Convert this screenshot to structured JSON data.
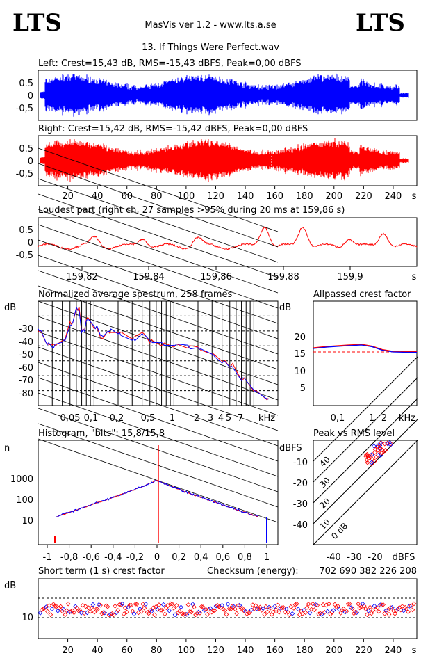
{
  "header": {
    "logo_left": "LTS",
    "logo_right": "LTS",
    "app_title": "MasVis ver 1.2 - www.lts.a.se",
    "file_title": "13. If Things Were Perfect.wav"
  },
  "colors": {
    "left": "#0000ff",
    "right": "#ff0000"
  },
  "chart_data": [
    {
      "type": "line",
      "title": "Left: Crest=15,43 dB, RMS=-15,43 dBFS, Peak=0,00 dBFS",
      "series": [
        {
          "name": "Left",
          "color": "#0000ff"
        }
      ],
      "xlim": [
        0,
        256
      ],
      "ylim": [
        -1,
        1
      ],
      "yticks": [
        "0.5",
        "0",
        "-0,5"
      ]
    },
    {
      "type": "line",
      "title": "Right: Crest=15,42 dB, RMS=-15,42 dBFS, Peak=0,00 dBFS",
      "series": [
        {
          "name": "Right",
          "color": "#ff0000"
        }
      ],
      "xlim": [
        0,
        256
      ],
      "ylim": [
        -1,
        1
      ],
      "yticks": [
        "0.5",
        "0",
        "-0,5"
      ],
      "xticks": [
        "20",
        "40",
        "60",
        "80",
        "100",
        "120",
        "140",
        "160",
        "180",
        "200",
        "220",
        "240"
      ],
      "xunit": "s"
    },
    {
      "type": "line",
      "title": "Loudest part (right ch, 27 samples >95% during 20 ms at 159,86 s)",
      "xlim": [
        159.8,
        159.92
      ],
      "ylim": [
        -1,
        1
      ],
      "yticks": [
        "0.5",
        "0",
        "-0,5"
      ],
      "xticks": [
        "159,82",
        "159,84",
        "159,86",
        "159,88",
        "159,9"
      ],
      "xunit": "s"
    },
    {
      "type": "line",
      "title": "Normalized average spectrum, 258 frames",
      "ylabel": "dB",
      "yticks": [
        "-30",
        "-40",
        "-50",
        "-60",
        "-70",
        "-80"
      ],
      "xticks": [
        "0,05",
        "0,1",
        "0,2",
        "0,5",
        "1",
        "2",
        "3",
        "4",
        "5",
        "7"
      ],
      "xunit": "kHz",
      "x_scale": "log",
      "ylim": [
        -90,
        -20
      ],
      "points_khz": [
        [
          0.02,
          -40
        ],
        [
          0.025,
          -48
        ],
        [
          0.03,
          -50
        ],
        [
          0.04,
          -47
        ],
        [
          0.05,
          -35
        ],
        [
          0.06,
          -25
        ],
        [
          0.07,
          -40
        ],
        [
          0.08,
          -32
        ],
        [
          0.1,
          -37
        ],
        [
          0.12,
          -44
        ],
        [
          0.15,
          -40
        ],
        [
          0.2,
          -42
        ],
        [
          0.3,
          -45
        ],
        [
          0.4,
          -42
        ],
        [
          0.5,
          -47
        ],
        [
          0.7,
          -49
        ],
        [
          1,
          -50
        ],
        [
          1.5,
          -51
        ],
        [
          2,
          -52
        ],
        [
          3,
          -56
        ],
        [
          4,
          -60
        ],
        [
          5,
          -63
        ],
        [
          7,
          -72
        ],
        [
          10,
          -80
        ],
        [
          14,
          -85
        ]
      ]
    },
    {
      "type": "line",
      "title": "Allpassed crest factor",
      "ylabel": "dB",
      "yticks": [
        "20",
        "15",
        "10",
        "5"
      ],
      "xticks": [
        "0,1",
        "1",
        "2"
      ],
      "xunit": "kHz",
      "x_scale": "log",
      "ylim": [
        0,
        25
      ],
      "reference_db": 15.4,
      "points_khz": [
        [
          0.02,
          16.6
        ],
        [
          0.05,
          17.0
        ],
        [
          0.1,
          17.2
        ],
        [
          0.2,
          17.4
        ],
        [
          0.5,
          17.6
        ],
        [
          1,
          17.1
        ],
        [
          2,
          16.1
        ],
        [
          4,
          15.6
        ],
        [
          10,
          15.5
        ],
        [
          20,
          15.5
        ]
      ]
    },
    {
      "type": "line",
      "title": "Histogram, \"bits\": 15,8/15,8",
      "ylabel": "n",
      "y_scale": "log",
      "yticks": [
        "1000",
        "100",
        "10"
      ],
      "xticks": [
        "-1",
        "-0,8",
        "-0,6",
        "-0,4",
        "-0,2",
        "0",
        "0,2",
        "0,4",
        "0,6",
        "0,8",
        "1"
      ],
      "xlim": [
        -1.1,
        1.1
      ]
    },
    {
      "type": "scatter",
      "title": "Peak vs RMS level",
      "ylabel": "dBFS",
      "yticks": [
        "-10",
        "-20",
        "-30",
        "-40"
      ],
      "xticks": [
        "-40",
        "-30",
        "-20",
        "dBFS"
      ],
      "diagonal_labels": [
        "40",
        "30",
        "20",
        "10",
        "0 dB"
      ],
      "xlim": [
        -50,
        0
      ],
      "ylim": [
        -50,
        0
      ]
    },
    {
      "type": "scatter",
      "title": "Short term (1 s) crest factor",
      "ylabel": "dB",
      "yticks": [
        "10"
      ],
      "xticks": [
        "20",
        "40",
        "60",
        "80",
        "100",
        "120",
        "140",
        "160",
        "180",
        "200",
        "220",
        "240"
      ],
      "xunit": "s",
      "checksum_label": "Checksum (energy):",
      "checksum_value": "702 690 382 226 208"
    }
  ]
}
